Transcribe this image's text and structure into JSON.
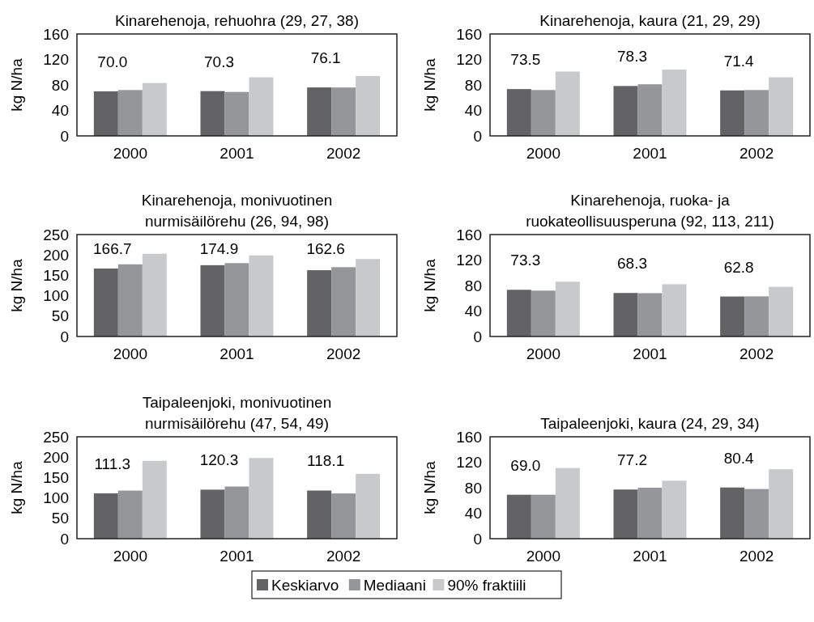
{
  "chart_data": [
    {
      "type": "bar",
      "title": "Kinarehenoja, rehuohra (29, 27, 38)",
      "ylabel": "kg N/ha",
      "categories": [
        "2000",
        "2001",
        "2002"
      ],
      "ylim": [
        0,
        160
      ],
      "yticks": [
        0,
        40,
        80,
        120,
        160
      ],
      "legend": "bottom",
      "series": [
        {
          "name": "Keskiarvo",
          "color": "#636366",
          "values": [
            70.0,
            70.3,
            76.1
          ],
          "value_labels": [
            "70.0",
            "70.3",
            "76.1"
          ]
        },
        {
          "name": "Mediaani",
          "color": "#959699",
          "values": [
            72,
            69,
            76
          ]
        },
        {
          "name": "90% fraktiili",
          "color": "#c8c9cb",
          "values": [
            83,
            92,
            94
          ]
        }
      ]
    },
    {
      "type": "bar",
      "title": "Kinarehenoja, kaura (21, 29, 29)",
      "ylabel": "kg N/ha",
      "categories": [
        "2000",
        "2001",
        "2002"
      ],
      "ylim": [
        0,
        160
      ],
      "yticks": [
        0,
        40,
        80,
        120,
        160
      ],
      "series": [
        {
          "color": "#636366",
          "values": [
            73.5,
            78.3,
            71.4
          ],
          "value_labels": [
            "73.5",
            "78.3",
            "71.4"
          ]
        },
        {
          "color": "#959699",
          "values": [
            72,
            81,
            72
          ]
        },
        {
          "color": "#c8c9cb",
          "values": [
            101,
            104,
            92
          ]
        }
      ]
    },
    {
      "type": "bar",
      "title": "Kinarehenoja, monivuotinen nurmisäilörehu (26, 94, 98)",
      "ylabel": "kg N/ha",
      "categories": [
        "2000",
        "2001",
        "2002"
      ],
      "ylim": [
        0,
        250
      ],
      "yticks": [
        0,
        50,
        100,
        150,
        200,
        250
      ],
      "series": [
        {
          "color": "#636366",
          "values": [
            166.7,
            174.9,
            162.6
          ],
          "value_labels": [
            "166.7",
            "174.9",
            "162.6"
          ]
        },
        {
          "color": "#959699",
          "values": [
            177,
            180,
            170
          ]
        },
        {
          "color": "#c8c9cb",
          "values": [
            203,
            199,
            190
          ]
        }
      ]
    },
    {
      "type": "bar",
      "title": "Kinarehenoja, ruoka- ja ruokateollisuusperuna (92, 113, 211)",
      "ylabel": "kg N/ha",
      "categories": [
        "2000",
        "2001",
        "2002"
      ],
      "ylim": [
        0,
        160
      ],
      "yticks": [
        0,
        40,
        80,
        120,
        160
      ],
      "series": [
        {
          "color": "#636366",
          "values": [
            73.3,
            68.3,
            62.8
          ],
          "value_labels": [
            "73.3",
            "68.3",
            "62.8"
          ]
        },
        {
          "color": "#959699",
          "values": [
            72,
            68,
            63
          ]
        },
        {
          "color": "#c8c9cb",
          "values": [
            86,
            82,
            78
          ]
        }
      ]
    },
    {
      "type": "bar",
      "title": "Taipaleenjoki, monivuotinen nurmisäilörehu (47, 54, 49)",
      "ylabel": "kg N/ha",
      "categories": [
        "2000",
        "2001",
        "2002"
      ],
      "ylim": [
        0,
        250
      ],
      "yticks": [
        0,
        50,
        100,
        150,
        200,
        250
      ],
      "series": [
        {
          "color": "#636366",
          "values": [
            111.3,
            120.3,
            118.1
          ],
          "value_labels": [
            "111.3",
            "120.3",
            "118.1"
          ]
        },
        {
          "color": "#959699",
          "values": [
            118,
            128,
            111
          ]
        },
        {
          "color": "#c8c9cb",
          "values": [
            191,
            198,
            159
          ]
        }
      ]
    },
    {
      "type": "bar",
      "title": "Taipaleenjoki, kaura (24, 29, 34)",
      "ylabel": "kg N/ha",
      "categories": [
        "2000",
        "2001",
        "2002"
      ],
      "ylim": [
        0,
        160
      ],
      "yticks": [
        0,
        40,
        80,
        120,
        160
      ],
      "series": [
        {
          "color": "#636366",
          "values": [
            69.0,
            77.2,
            80.4
          ],
          "value_labels": [
            "69.0",
            "77.2",
            "80.4"
          ]
        },
        {
          "color": "#959699",
          "values": [
            69,
            80,
            78
          ]
        },
        {
          "color": "#c8c9cb",
          "values": [
            111,
            91,
            109
          ]
        }
      ]
    }
  ]
}
